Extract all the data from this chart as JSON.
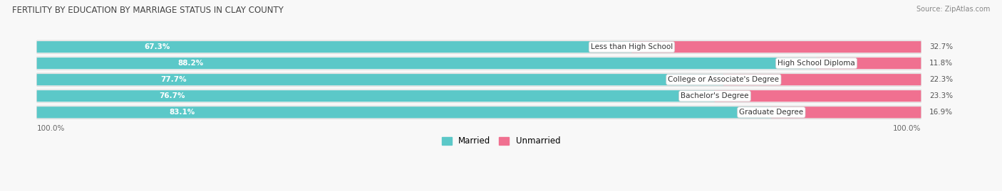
{
  "title": "FERTILITY BY EDUCATION BY MARRIAGE STATUS IN CLAY COUNTY",
  "source": "Source: ZipAtlas.com",
  "categories": [
    "Less than High School",
    "High School Diploma",
    "College or Associate's Degree",
    "Bachelor's Degree",
    "Graduate Degree"
  ],
  "married": [
    67.3,
    88.2,
    77.7,
    76.7,
    83.1
  ],
  "unmarried": [
    32.7,
    11.8,
    22.3,
    23.3,
    16.9
  ],
  "married_color": "#5bc8c8",
  "unmarried_color": "#f07090",
  "row_bg_even": "#ebebeb",
  "row_bg_odd": "#f5f5f5",
  "fig_bg": "#f8f8f8",
  "axis_label_left": "100.0%",
  "axis_label_right": "100.0%",
  "figsize": [
    14.06,
    2.69
  ],
  "dpi": 100
}
